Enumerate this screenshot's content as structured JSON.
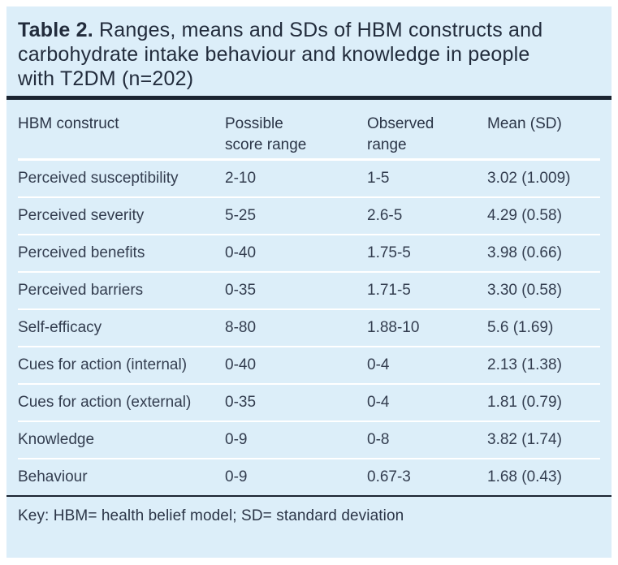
{
  "colors": {
    "panel_bg": "#dceef9",
    "rule": "#1b2431",
    "title_text": "#222c3c",
    "body_text": "#333d4f",
    "row_separator": "#ffffff"
  },
  "title": {
    "label": "Table 2.",
    "line1_rest": "Ranges, means and SDs of HBM constructs and",
    "line2": "carbohydrate intake behaviour and knowledge in people",
    "line3": "with T2DM (n=202)"
  },
  "table": {
    "columns": [
      "HBM construct",
      "Possible score range",
      "Observed range",
      "Mean (SD)"
    ],
    "rows": [
      [
        "Perceived susceptibility",
        "2-10",
        "1-5",
        "3.02 (1.009)"
      ],
      [
        "Perceived severity",
        "5-25",
        "2.6-5",
        "4.29 (0.58)"
      ],
      [
        "Perceived benefits",
        "0-40",
        "1.75-5",
        "3.98 (0.66)"
      ],
      [
        "Perceived barriers",
        "0-35",
        "1.71-5",
        "3.30 (0.58)"
      ],
      [
        "Self-efficacy",
        "8-80",
        "1.88-10",
        "5.6 (1.69)"
      ],
      [
        "Cues for action (internal)",
        "0-40",
        "0-4",
        "2.13 (1.38)"
      ],
      [
        "Cues for action (external)",
        "0-35",
        "0-4",
        "1.81 (0.79)"
      ],
      [
        "Knowledge",
        "0-9",
        "0-8",
        "3.82 (1.74)"
      ],
      [
        "Behaviour",
        "0-9",
        "0.67-3",
        "1.68 (0.43)"
      ]
    ]
  },
  "footnote": "Key: HBM= health belief model; SD= standard deviation"
}
